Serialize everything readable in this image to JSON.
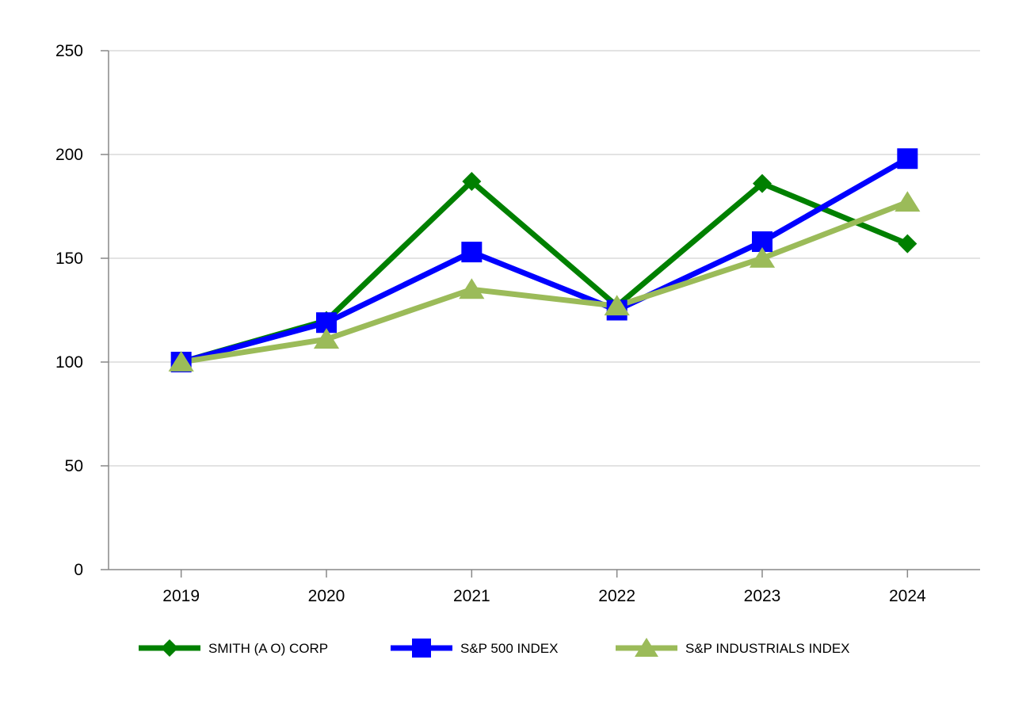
{
  "chart_data": {
    "type": "line",
    "title": "",
    "xlabel": "",
    "ylabel": "",
    "categories": [
      "2019",
      "2020",
      "2021",
      "2022",
      "2023",
      "2024"
    ],
    "ylim": [
      0,
      250
    ],
    "yticks": [
      0,
      50,
      100,
      150,
      200,
      250
    ],
    "grid": true,
    "legend_position": "bottom",
    "series": [
      {
        "name": "SMITH (A O) CORP",
        "color": "#008000",
        "marker": "diamond",
        "values": [
          100,
          120,
          187,
          127,
          186,
          157
        ]
      },
      {
        "name": "S&P 500 INDEX",
        "color": "#0000ff",
        "marker": "square",
        "values": [
          100,
          119,
          153,
          125,
          158,
          198
        ]
      },
      {
        "name": "S&P INDUSTRIALS INDEX",
        "color": "#9bbb59",
        "marker": "triangle",
        "values": [
          100,
          111,
          135,
          127,
          150,
          177
        ]
      }
    ]
  }
}
